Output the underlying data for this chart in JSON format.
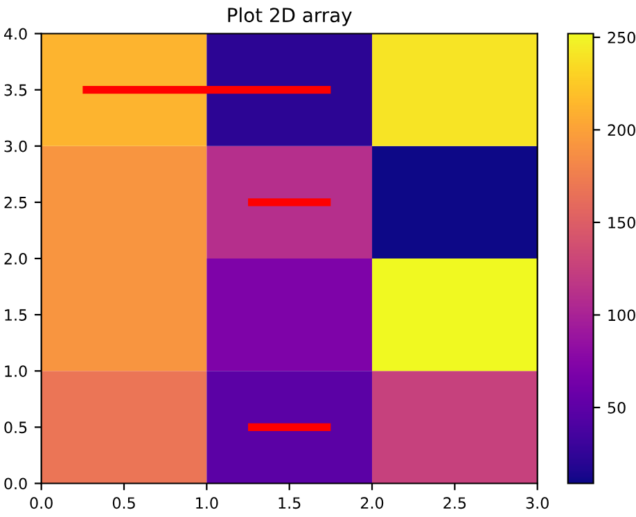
{
  "chart_data": {
    "type": "heatmap",
    "title": "Plot 2D array",
    "cells": [
      [
        212,
        22,
        240
      ],
      [
        192,
        110,
        9
      ],
      [
        192,
        70,
        252
      ],
      [
        168,
        48,
        125
      ]
    ],
    "clim": [
      9,
      252
    ],
    "cticks": [
      50,
      100,
      150,
      200,
      250
    ],
    "xlim": [
      0,
      3
    ],
    "ylim": [
      0,
      4
    ],
    "xticks": [
      {
        "value": 0,
        "label": "0.0"
      },
      0.5,
      {
        "value": 1,
        "label": "1.0"
      },
      1.5,
      {
        "value": 2,
        "label": "2.0"
      },
      2.5,
      {
        "value": 3,
        "label": "3.0"
      }
    ],
    "yticks": [
      {
        "value": 0,
        "label": "0.0"
      },
      0.5,
      {
        "value": 1,
        "label": "1.0"
      },
      1.5,
      {
        "value": 2,
        "label": "2.0"
      },
      2.5,
      {
        "value": 3,
        "label": "3.0"
      },
      3.5,
      {
        "value": 4,
        "label": "4.0"
      }
    ],
    "series": [
      {
        "type": "line",
        "color": "#ff0000",
        "x": [
          0.25,
          1.75
        ],
        "values": [
          3.5,
          3.5
        ]
      },
      {
        "type": "line",
        "color": "#ff0000",
        "x": [
          1.25,
          1.75
        ],
        "values": [
          2.5,
          2.5
        ]
      },
      {
        "type": "line",
        "color": "#ff0000",
        "x": [
          1.25,
          1.75
        ],
        "values": [
          0.5,
          0.5
        ]
      }
    ],
    "grid": false
  }
}
